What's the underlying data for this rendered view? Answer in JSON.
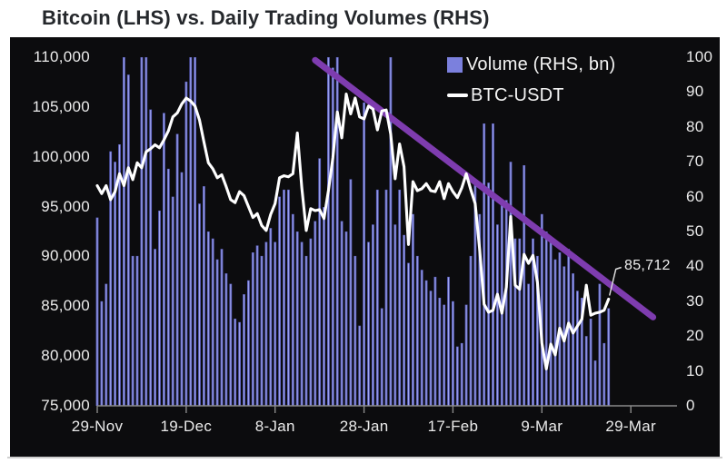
{
  "title": "Bitcoin (LHS) vs. Daily Trading Volumes (RHS)",
  "legend": [
    {
      "label": "Volume (RHS, bn)",
      "swatch": "bar",
      "color": "#7b80dd"
    },
    {
      "label": "BTC-USDT",
      "swatch": "line",
      "color": "#ffffff"
    }
  ],
  "annotation_label": "85,712",
  "colors": {
    "page_bg": "#ffffff",
    "panel_bg": "#0c0c0e",
    "bar": "#5c61bf",
    "bar_highlight": "#a0a5ec",
    "price_line": "#ffffff",
    "trendline": "#7e3caf",
    "axis": "#8a8a8a",
    "tick_text": "#ebebeb",
    "title_text": "#25282c"
  },
  "chart_data": {
    "type": "bar",
    "subtype": "combo-bar-and-line",
    "title": "Bitcoin (LHS) vs. Daily Trading Volumes (RHS)",
    "x_start_label": "29-Nov",
    "x_tick_labels": [
      "29-Nov",
      "19-Dec",
      "8-Jan",
      "28-Jan",
      "17-Feb",
      "9-Mar",
      "29-Mar"
    ],
    "x_tick_days": [
      0,
      20,
      40,
      60,
      80,
      100,
      120
    ],
    "left_axis": {
      "min": 75000,
      "max": 110000,
      "tick_labels": [
        "110,000",
        "105,000",
        "100,000",
        "95,000",
        "90,000",
        "85,000",
        "80,000",
        "75,000"
      ],
      "tick_values": [
        110000,
        105000,
        100000,
        95000,
        90000,
        85000,
        80000,
        75000
      ]
    },
    "right_axis": {
      "min": 0,
      "max": 100,
      "tick_labels": [
        "100",
        "90",
        "80",
        "70",
        "60",
        "50",
        "40",
        "30",
        "20",
        "10",
        "0"
      ],
      "tick_values": [
        100,
        90,
        80,
        70,
        60,
        50,
        40,
        30,
        20,
        10,
        0
      ]
    },
    "grid": false,
    "legend_position": "top-right-inside",
    "series": [
      {
        "name": "Volume (RHS, bn)",
        "type": "bar",
        "axis": "right",
        "values": [
          54,
          30,
          35,
          73,
          70,
          75,
          100,
          95,
          43,
          43,
          100,
          100,
          85,
          45,
          56,
          84,
          68,
          60,
          78,
          67,
          93,
          100,
          100,
          58,
          63,
          50,
          48,
          42,
          45,
          38,
          35,
          25,
          24,
          32,
          36,
          44,
          46,
          43,
          47,
          51,
          47,
          60,
          62,
          62,
          55,
          50,
          47,
          43,
          48,
          53,
          71,
          57,
          100,
          97,
          100,
          53,
          50,
          65,
          43,
          23,
          87,
          47,
          52,
          62,
          28,
          62,
          100,
          52,
          62,
          49,
          41,
          55,
          43,
          39,
          36,
          33,
          37,
          31,
          29,
          37,
          30,
          17,
          18,
          29,
          43,
          64,
          55,
          81,
          64,
          81,
          52,
          59,
          59,
          70,
          48,
          48,
          69,
          35,
          48,
          43,
          55,
          50,
          48,
          42,
          44,
          40,
          45,
          38,
          33,
          31,
          20,
          25,
          13,
          35,
          18,
          28
        ]
      },
      {
        "name": "BTC-USDT",
        "type": "line",
        "axis": "left",
        "values": [
          97100,
          96300,
          97100,
          95700,
          96500,
          98300,
          97100,
          98900,
          97700,
          99400,
          98900,
          100500,
          100800,
          101200,
          100900,
          101700,
          102600,
          104000,
          104400,
          105300,
          105900,
          105600,
          105100,
          103700,
          101500,
          99400,
          98800,
          97900,
          98200,
          97000,
          95700,
          95400,
          96500,
          96100,
          95000,
          93900,
          94300,
          93100,
          92600,
          94200,
          95300,
          97900,
          98100,
          98000,
          98300,
          102400,
          96900,
          92600,
          94800,
          94600,
          94700,
          93800,
          96600,
          99900,
          104500,
          101900,
          106300,
          104300,
          105900,
          104000,
          103800,
          105100,
          104800,
          102700,
          104600,
          104700,
          102300,
          97800,
          101300,
          99000,
          91200,
          97500,
          96600,
          96800,
          97300,
          96600,
          96500,
          97500,
          95800,
          97300,
          96500,
          95900,
          96900,
          98300,
          96700,
          95300,
          90700,
          85200,
          84400,
          84600,
          86200,
          84300,
          86900,
          94000,
          87100,
          86700,
          90200,
          89300,
          90100,
          87400,
          81300,
          78700,
          81200,
          80100,
          82800,
          81500,
          83300,
          82300,
          83000,
          83700,
          87100,
          84100,
          84300,
          84400,
          84600,
          85712
        ]
      }
    ],
    "trendline": {
      "start_day": 49,
      "start_value": 109700,
      "end_day": 125,
      "end_value": 83900
    },
    "annotation": {
      "text": "85,712",
      "day": 115,
      "value": 85712
    }
  }
}
